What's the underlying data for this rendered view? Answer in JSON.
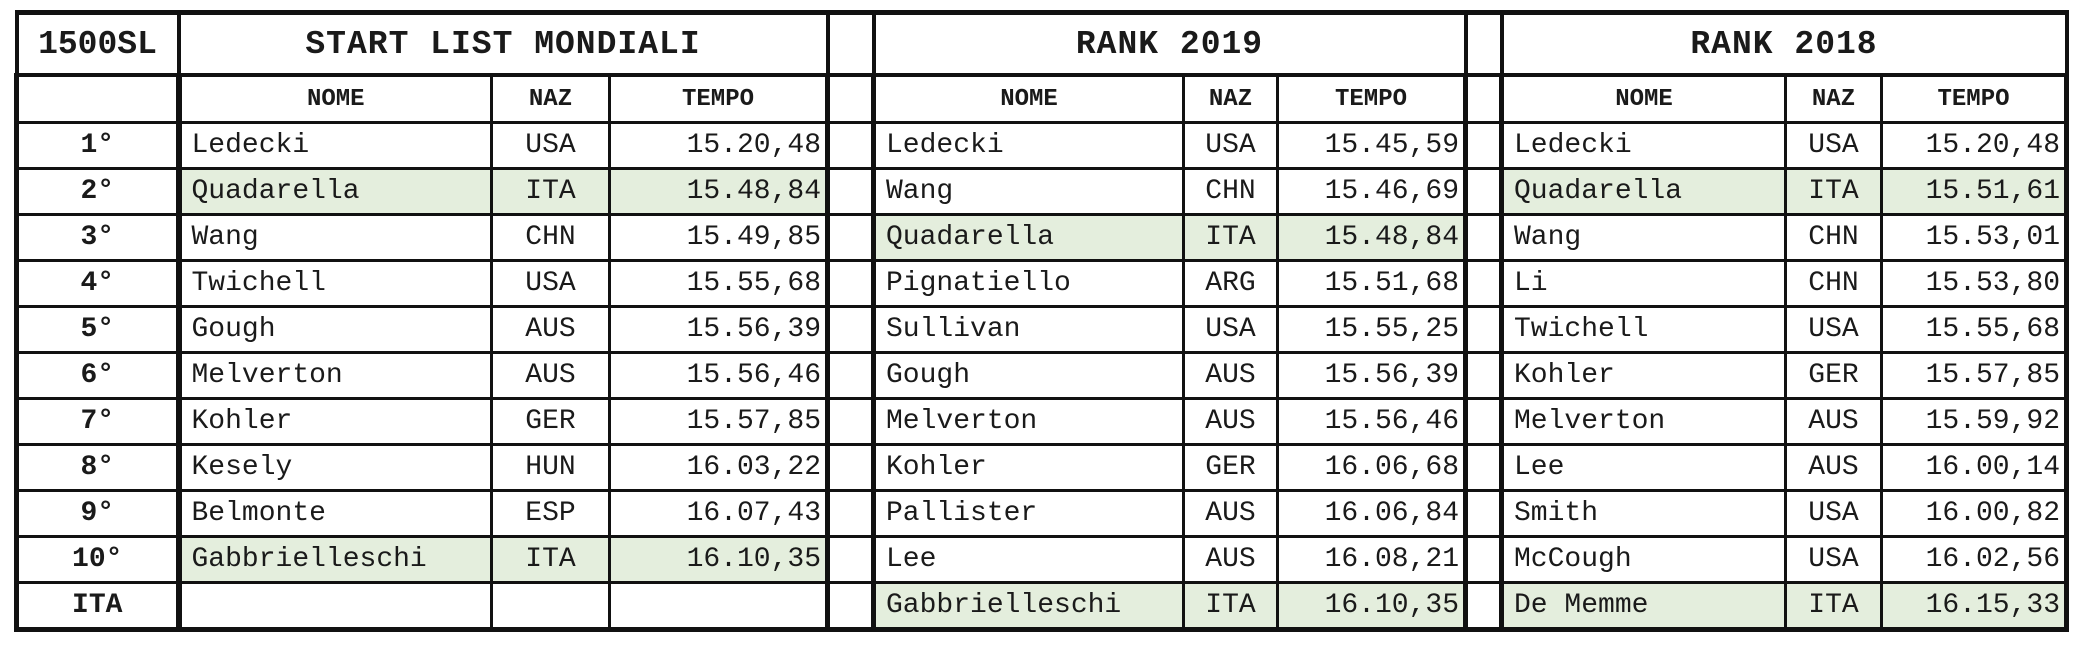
{
  "event": "1500SL",
  "row_label_ita": "ITA",
  "highlight_color": "#e4eedd",
  "sections": [
    {
      "title": "START LIST MONDIALI",
      "headers": [
        "NOME",
        "NAZ",
        "TEMPO"
      ],
      "rows": [
        {
          "nome": "Ledecki",
          "naz": "USA",
          "tempo": "15.20,48",
          "hl": false
        },
        {
          "nome": "Quadarella",
          "naz": "ITA",
          "tempo": "15.48,84",
          "hl": true
        },
        {
          "nome": "Wang",
          "naz": "CHN",
          "tempo": "15.49,85",
          "hl": false
        },
        {
          "nome": "Twichell",
          "naz": "USA",
          "tempo": "15.55,68",
          "hl": false
        },
        {
          "nome": "Gough",
          "naz": "AUS",
          "tempo": "15.56,39",
          "hl": false
        },
        {
          "nome": "Melverton",
          "naz": "AUS",
          "tempo": "15.56,46",
          "hl": false
        },
        {
          "nome": "Kohler",
          "naz": "GER",
          "tempo": "15.57,85",
          "hl": false
        },
        {
          "nome": "Kesely",
          "naz": "HUN",
          "tempo": "16.03,22",
          "hl": false
        },
        {
          "nome": "Belmonte",
          "naz": "ESP",
          "tempo": "16.07,43",
          "hl": false
        },
        {
          "nome": "Gabbrielleschi",
          "naz": "ITA",
          "tempo": "16.10,35",
          "hl": true
        },
        {
          "nome": "",
          "naz": "",
          "tempo": "",
          "hl": false
        }
      ]
    },
    {
      "title": "RANK 2019",
      "headers": [
        "NOME",
        "NAZ",
        "TEMPO"
      ],
      "rows": [
        {
          "nome": "Ledecki",
          "naz": "USA",
          "tempo": "15.45,59",
          "hl": false
        },
        {
          "nome": "Wang",
          "naz": "CHN",
          "tempo": "15.46,69",
          "hl": false
        },
        {
          "nome": "Quadarella",
          "naz": "ITA",
          "tempo": "15.48,84",
          "hl": true
        },
        {
          "nome": "Pignatiello",
          "naz": "ARG",
          "tempo": "15.51,68",
          "hl": false
        },
        {
          "nome": "Sullivan",
          "naz": "USA",
          "tempo": "15.55,25",
          "hl": false
        },
        {
          "nome": "Gough",
          "naz": "AUS",
          "tempo": "15.56,39",
          "hl": false
        },
        {
          "nome": "Melverton",
          "naz": "AUS",
          "tempo": "15.56,46",
          "hl": false
        },
        {
          "nome": "Kohler",
          "naz": "GER",
          "tempo": "16.06,68",
          "hl": false
        },
        {
          "nome": "Pallister",
          "naz": "AUS",
          "tempo": "16.06,84",
          "hl": false
        },
        {
          "nome": "Lee",
          "naz": "AUS",
          "tempo": "16.08,21",
          "hl": false
        },
        {
          "nome": "Gabbrielleschi",
          "naz": "ITA",
          "tempo": "16.10,35",
          "hl": true
        }
      ]
    },
    {
      "title": "RANK 2018",
      "headers": [
        "NOME",
        "NAZ",
        "TEMPO"
      ],
      "rows": [
        {
          "nome": "Ledecki",
          "naz": "USA",
          "tempo": "15.20,48",
          "hl": false
        },
        {
          "nome": "Quadarella",
          "naz": "ITA",
          "tempo": "15.51,61",
          "hl": true
        },
        {
          "nome": "Wang",
          "naz": "CHN",
          "tempo": "15.53,01",
          "hl": false
        },
        {
          "nome": "Li",
          "naz": "CHN",
          "tempo": "15.53,80",
          "hl": false
        },
        {
          "nome": "Twichell",
          "naz": "USA",
          "tempo": "15.55,68",
          "hl": false
        },
        {
          "nome": "Kohler",
          "naz": "GER",
          "tempo": "15.57,85",
          "hl": false
        },
        {
          "nome": "Melverton",
          "naz": "AUS",
          "tempo": "15.59,92",
          "hl": false
        },
        {
          "nome": "Lee",
          "naz": "AUS",
          "tempo": "16.00,14",
          "hl": false
        },
        {
          "nome": "Smith",
          "naz": "USA",
          "tempo": "16.00,82",
          "hl": false
        },
        {
          "nome": "McCough",
          "naz": "USA",
          "tempo": "16.02,56",
          "hl": false
        },
        {
          "nome": "De Memme",
          "naz": "ITA",
          "tempo": "16.15,33",
          "hl": true
        }
      ]
    }
  ],
  "positions": [
    "1°",
    "2°",
    "3°",
    "4°",
    "5°",
    "6°",
    "7°",
    "8°",
    "9°",
    "10°"
  ]
}
